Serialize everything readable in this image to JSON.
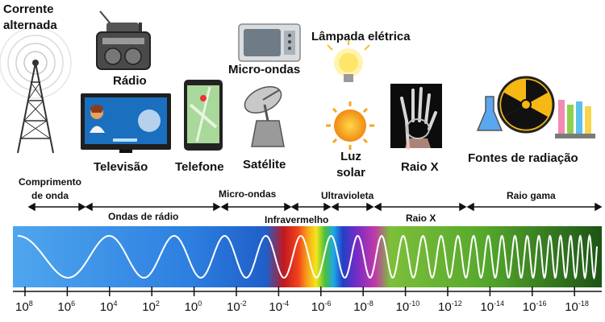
{
  "sources": {
    "ac": "Corrente alternada",
    "radio": "Rádio",
    "tv": "Televisão",
    "phone": "Telefone",
    "microwave": "Micro-ondas",
    "satellite": "Satélite",
    "lamp": "Lâmpada elétrica",
    "sun": "Luz solar",
    "xray": "Raio X",
    "radiation": "Fontes de radiação"
  },
  "bands": {
    "wavelength": "Comprimento de onda",
    "radio_waves": "Ondas de rádio",
    "microwaves": "Micro-ondas",
    "infrared": "Infravermelho",
    "ultraviolet": "Ultravioleta",
    "xray": "Raio X",
    "gamma": "Raio gama"
  },
  "scale": {
    "base": "10",
    "exponents": [
      "8",
      "6",
      "4",
      "2",
      "0",
      "-2",
      "-4",
      "-6",
      "-8",
      "-10",
      "-12",
      "-14",
      "-16",
      "-18"
    ]
  },
  "colors": {
    "radio_blue": "#2f7fe0",
    "infrared_red": "#e8202a",
    "visible_violet": "#6a2bc9",
    "xray_green": "#6bb52f",
    "gamma_dark_green": "#1e5a18"
  }
}
